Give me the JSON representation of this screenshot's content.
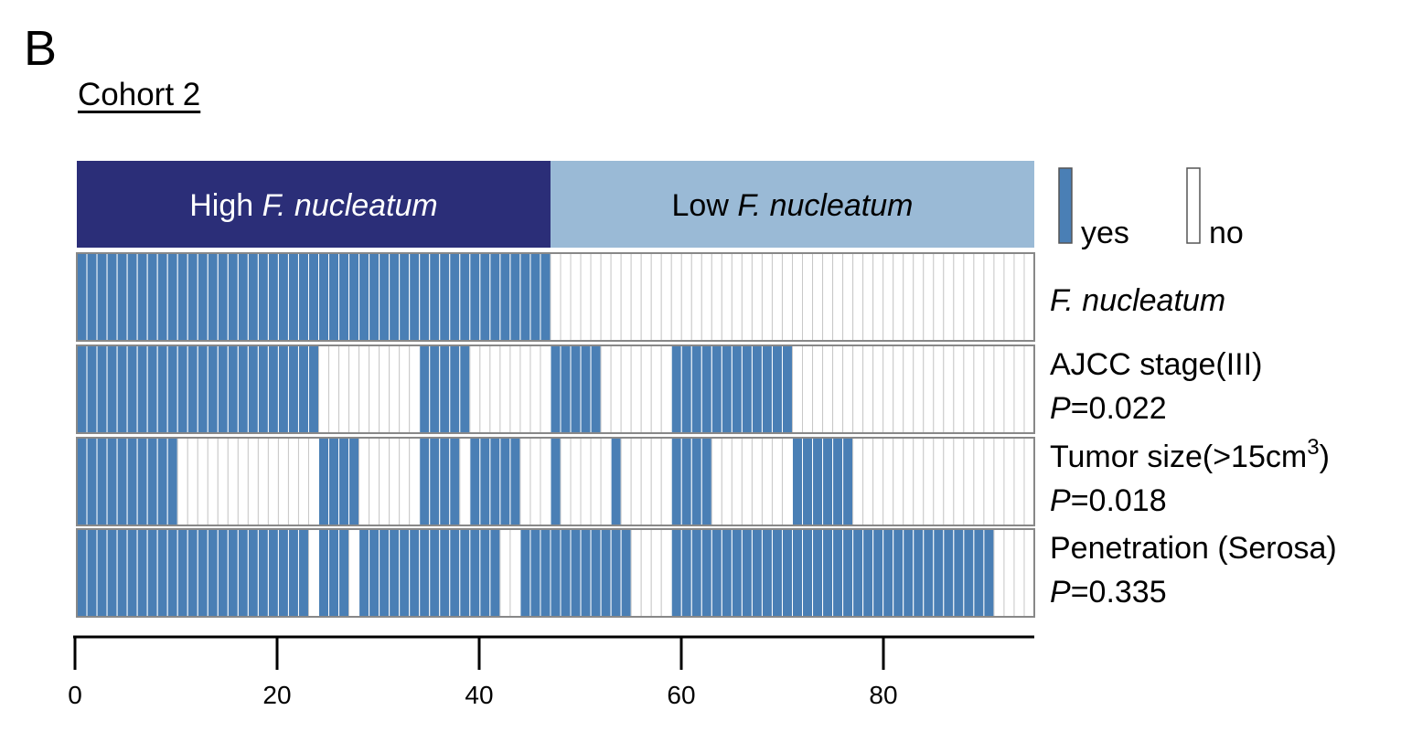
{
  "panel_letter": "B",
  "cohort_title": "Cohort 2",
  "colors": {
    "yes": "#4a7fb5",
    "no": "#ffffff",
    "high_header": "#2b2e78",
    "low_header": "#9abad6",
    "grid_line": "#c8c8c8"
  },
  "chart_data": {
    "type": "heatmap",
    "n_samples": 95,
    "groups": [
      {
        "label_plain": "High ",
        "label_italic": "F. nucleatum",
        "start": 0,
        "end": 47
      },
      {
        "label_plain": "Low ",
        "label_italic": "F. nucleatum",
        "start": 47,
        "end": 95
      }
    ],
    "legend": [
      {
        "label": "yes",
        "color": "#4a7fb5"
      },
      {
        "label": "no",
        "color": "#ffffff"
      }
    ],
    "rows": [
      {
        "name": "F. nucleatum",
        "name_italic": true,
        "p_label": "",
        "p_value": "",
        "yes_ranges": [
          [
            0,
            47
          ]
        ]
      },
      {
        "name": "AJCC stage(III)",
        "p_label": "P",
        "p_value": "=0.022",
        "yes_ranges": [
          [
            0,
            24
          ],
          [
            34,
            39
          ],
          [
            47,
            52
          ],
          [
            59,
            71
          ]
        ]
      },
      {
        "name": "Tumor size(>15cm",
        "superscript": "3",
        "suffix": ")",
        "p_label": "P",
        "p_value": "=0.018",
        "yes_ranges": [
          [
            0,
            10
          ],
          [
            24,
            28
          ],
          [
            34,
            38
          ],
          [
            39,
            44
          ],
          [
            47,
            48
          ],
          [
            53,
            54
          ],
          [
            59,
            63
          ],
          [
            71,
            77
          ]
        ]
      },
      {
        "name": "Penetration (Serosa)",
        "p_label": "P",
        "p_value": "=0.335",
        "yes_ranges": [
          [
            0,
            23
          ],
          [
            24,
            27
          ],
          [
            28,
            42
          ],
          [
            44,
            55
          ],
          [
            59,
            91
          ]
        ]
      }
    ],
    "x_axis": {
      "ticks": [
        "0",
        "20",
        "40",
        "60",
        "80"
      ],
      "tick_values": [
        0,
        20,
        40,
        60,
        80
      ],
      "range": [
        0,
        95
      ]
    }
  }
}
